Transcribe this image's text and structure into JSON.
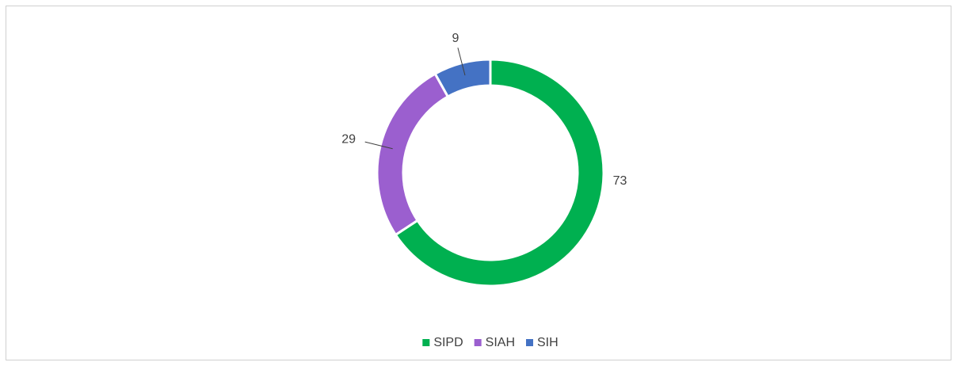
{
  "chart_data": {
    "type": "donut",
    "categories": [
      "SIPD",
      "SIAH",
      "SIH"
    ],
    "values": [
      73,
      29,
      9
    ],
    "colors": [
      "#00b050",
      "#9b5fcf",
      "#4472c4"
    ],
    "legend": "bottom"
  }
}
